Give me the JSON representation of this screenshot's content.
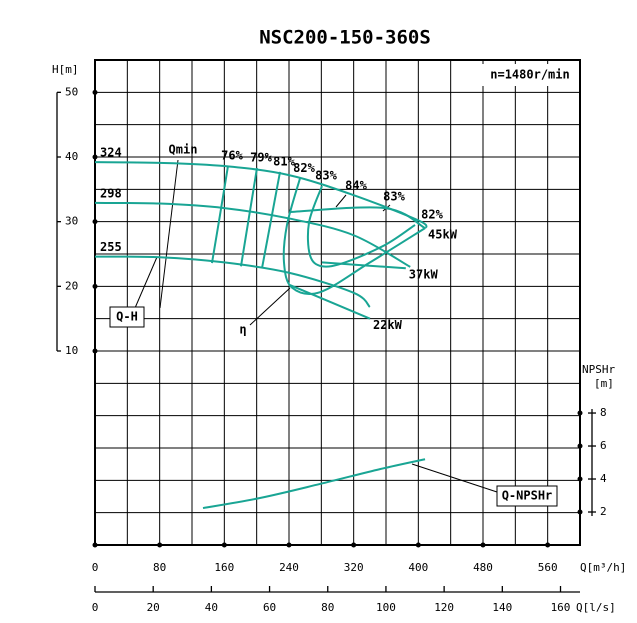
{
  "chart_data": {
    "type": "pump-curve",
    "title": "NSC200-150-360S",
    "speed_label": "n=1480r/min",
    "x_label": "Q[m³/h]",
    "x2_label": "Q[l/s]",
    "y_label": "H[m]",
    "y2_label": "NPSHr",
    "y2_unit": "[m]",
    "color": "#19a594",
    "xlim": [
      0,
      600
    ],
    "xticks": [
      0,
      80,
      160,
      240,
      320,
      400,
      480,
      560
    ],
    "x2lim": [
      0,
      166.7
    ],
    "x2ticks": [
      0,
      20,
      40,
      60,
      80,
      100,
      120,
      140,
      160
    ],
    "ylim": [
      -20,
      55
    ],
    "yticks": [
      10,
      20,
      30,
      40,
      50
    ],
    "y2lim": [
      0,
      29.4
    ],
    "y2ticks": [
      2,
      4,
      6,
      8
    ],
    "series": [
      {
        "name": "324",
        "x": [
          0,
          80,
          160,
          240,
          320,
          400,
          410
        ],
        "values": [
          39.2,
          39.1,
          38.6,
          37.2,
          34.1,
          30.2,
          29.0
        ]
      },
      {
        "name": "298",
        "x": [
          0,
          80,
          160,
          240,
          320,
          390
        ],
        "values": [
          32.9,
          32.8,
          32.1,
          30.5,
          27.9,
          23.0
        ]
      },
      {
        "name": "255",
        "x": [
          0,
          80,
          160,
          240,
          320,
          340
        ],
        "values": [
          24.6,
          24.5,
          23.7,
          22.1,
          19.0,
          16.8
        ]
      }
    ],
    "efficiency": [
      {
        "name": "76%",
        "x": [
          164.5,
          154.6,
          144.7
        ],
        "values": [
          38.6,
          31.0,
          23.6
        ]
      },
      {
        "name": "79%",
        "x": [
          200.4,
          190.5,
          180.6
        ],
        "values": [
          38.3,
          30.7,
          23.1
        ]
      },
      {
        "name": "81%",
        "x": [
          228.9,
          217.7,
          206.6
        ],
        "values": [
          37.7,
          30.2,
          22.8
        ]
      },
      {
        "name": "82%",
        "x": [
          253.6,
          237.5,
          233.8,
          243.7,
          278.4,
          340.2,
          408.3
        ],
        "values": [
          36.7,
          29.5,
          23.7,
          19.8,
          19.1,
          23.7,
          29.0
        ]
      },
      {
        "name": "83%",
        "x": [
          280.8,
          264.8,
          266.0,
          280.8,
          309.3,
          358.8,
          395.9
        ],
        "values": [
          35.5,
          29.9,
          24.8,
          23.1,
          23.7,
          26.4,
          29.5
        ]
      }
    ],
    "power": [
      {
        "name": "45kW",
        "x": [
          241.2,
          358.8,
          408.3
        ],
        "values": [
          31.5,
          32.1,
          29.0
        ]
      },
      {
        "name": "37kW",
        "x": [
          280.8,
          384.5
        ],
        "values": [
          23.7,
          22.8
        ]
      },
      {
        "name": "22kW",
        "x": [
          241.2,
          340.2
        ],
        "values": [
          20.2,
          15.0
        ]
      }
    ],
    "npshr": {
      "name": "Q-NPSHr",
      "axis": "y2",
      "x": [
        133.6,
        204.1,
        278.4,
        352.6,
        408.3
      ],
      "values": [
        2.24,
        2.85,
        3.7,
        4.6,
        5.2
      ]
    },
    "annotations": [
      "Qmin",
      "Q-H",
      "η",
      "84%",
      "83%",
      "82%"
    ]
  }
}
